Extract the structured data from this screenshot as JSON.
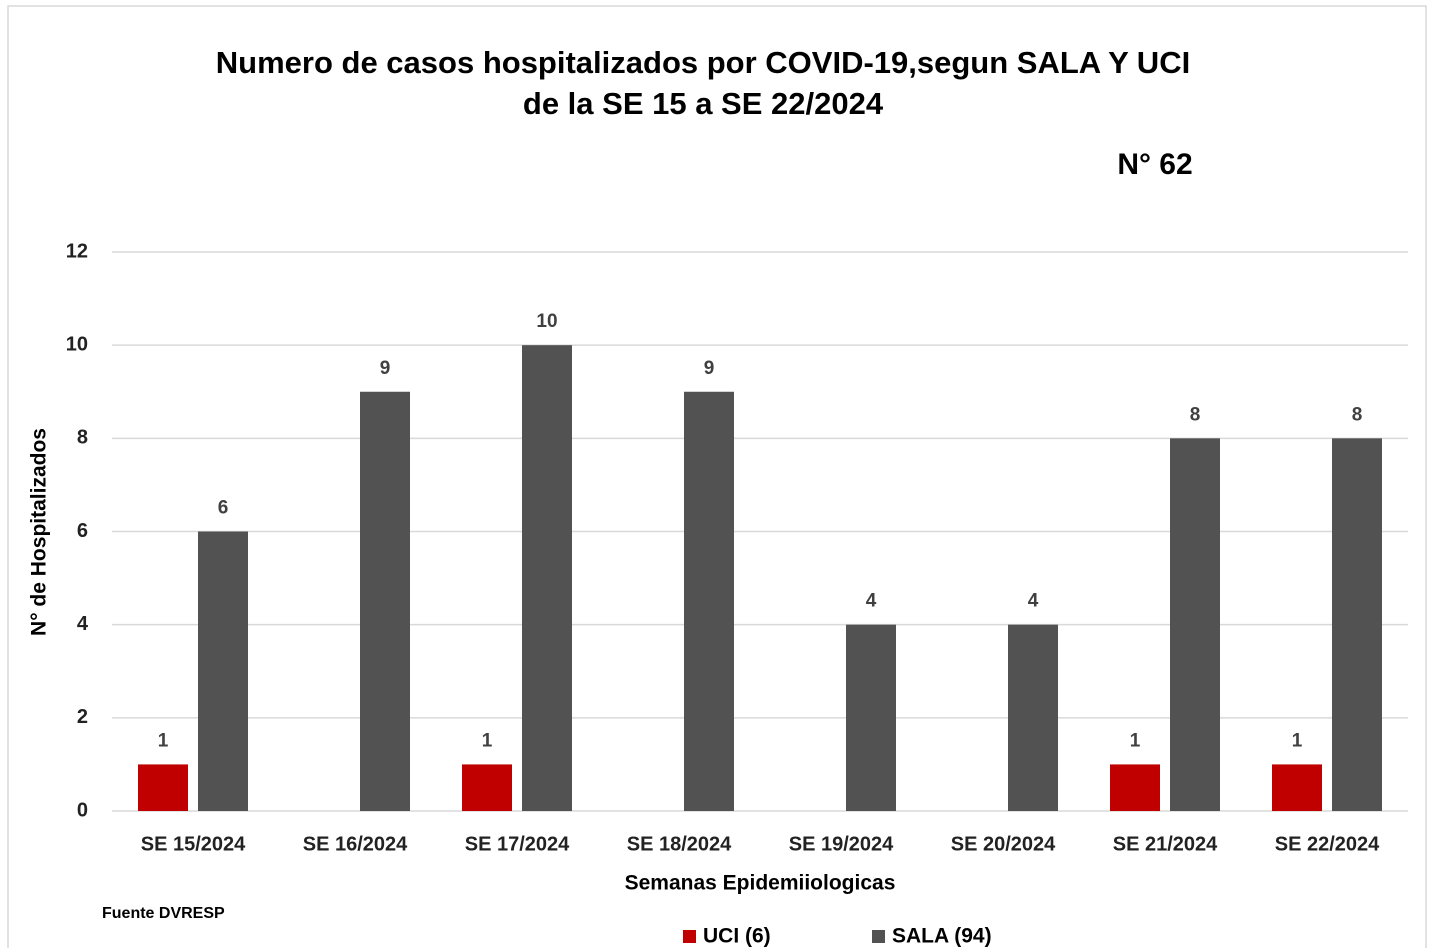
{
  "chart_data": {
    "type": "bar",
    "title": [
      "Numero de casos hospitalizados por COVID-19,segun SALA Y UCI",
      "de la SE 15 a SE 22/2024"
    ],
    "annotation": "N° 62",
    "source": "Fuente DVRESP",
    "x_label": "Semanas Epidemiiologicas",
    "y_label": "N° de Hospitalizados",
    "categories": [
      "SE 15/2024",
      "SE 16/2024",
      "SE 17/2024",
      "SE 18/2024",
      "SE 19/2024",
      "SE 20/2024",
      "SE 21/2024",
      "SE 22/2024"
    ],
    "series": [
      {
        "name": "UCI (6)",
        "color": "#c00000",
        "values": [
          1,
          null,
          1,
          null,
          null,
          null,
          1,
          1
        ]
      },
      {
        "name": "SALA (94)",
        "color": "#525252",
        "values": [
          6,
          9,
          10,
          9,
          4,
          4,
          8,
          8
        ]
      }
    ],
    "ylim": [
      0,
      12
    ],
    "yticks": [
      0,
      2,
      4,
      6,
      8,
      10,
      12
    ],
    "grid": true,
    "legend": "bottom"
  }
}
